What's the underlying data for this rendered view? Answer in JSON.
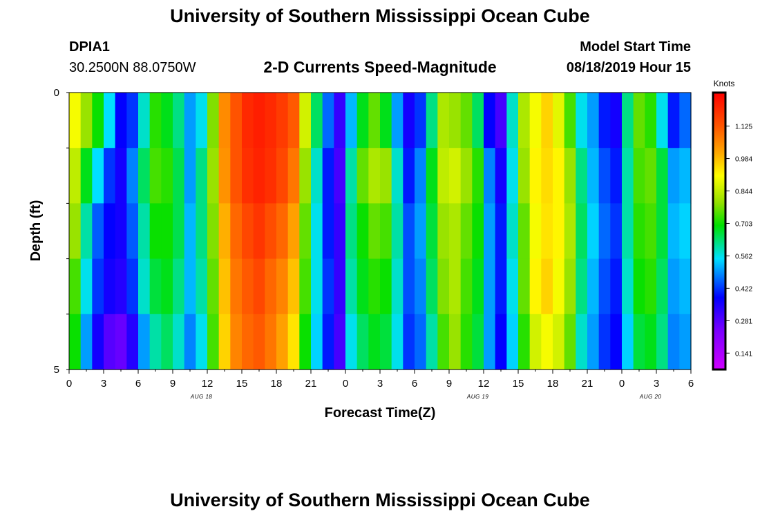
{
  "header": {
    "title": "University of Southern Mississippi Ocean Cube",
    "station_id": "DPIA1",
    "station_coords": "30.2500N 88.0750W",
    "subtitle": "2-D Currents Speed-Magnitude",
    "model_label": "Model Start Time",
    "model_time": "08/18/2019 Hour 15"
  },
  "footer": {
    "title": "University of Southern Mississippi Ocean Cube"
  },
  "chart_data": {
    "type": "heatmap",
    "title": "2-D Currents Speed-Magnitude",
    "xlabel": "Forecast Time(Z)",
    "ylabel": "Depth (ft)",
    "x_ticks": [
      "0",
      "3",
      "6",
      "9",
      "12",
      "15",
      "18",
      "21",
      "0",
      "3",
      "6",
      "9",
      "12",
      "15",
      "18",
      "21",
      "0",
      "3",
      "6"
    ],
    "date_labels": [
      {
        "label": "AUG 18",
        "hour_index": 11.5
      },
      {
        "label": "AUG 19",
        "hour_index": 35.5
      },
      {
        "label": "AUG 20",
        "hour_index": 50.5
      }
    ],
    "y_ticks": [
      "0",
      "5"
    ],
    "ylim": [
      0,
      5
    ],
    "colorbar": {
      "unit": "Knots",
      "ticks": [
        "0.141",
        "0.281",
        "0.422",
        "0.562",
        "0.703",
        "0.844",
        "0.984",
        "1.125"
      ],
      "range": [
        0.07,
        1.27
      ]
    },
    "n_hours": 54,
    "n_depth_bands": 5,
    "speeds_knots": [
      [
        0.9,
        0.8,
        0.7,
        0.55,
        0.38,
        0.42,
        0.58,
        0.72,
        0.68,
        0.62,
        0.5,
        0.56,
        0.78,
        1.05,
        1.13,
        1.2,
        1.22,
        1.2,
        1.17,
        1.12,
        0.86,
        0.64,
        0.46,
        0.32,
        0.52,
        0.68,
        0.76,
        0.68,
        0.5,
        0.36,
        0.42,
        0.62,
        0.82,
        0.8,
        0.76,
        0.64,
        0.38,
        0.3,
        0.58,
        0.82,
        0.9,
        0.96,
        0.88,
        0.74,
        0.56,
        0.5,
        0.4,
        0.36,
        0.62,
        0.76,
        0.72,
        0.56,
        0.4,
        0.46
      ],
      [
        0.84,
        0.68,
        0.55,
        0.42,
        0.36,
        0.48,
        0.64,
        0.74,
        0.72,
        0.65,
        0.5,
        0.62,
        0.8,
        1.04,
        1.13,
        1.19,
        1.21,
        1.19,
        1.15,
        1.08,
        0.8,
        0.58,
        0.4,
        0.3,
        0.6,
        0.76,
        0.82,
        0.8,
        0.58,
        0.4,
        0.48,
        0.68,
        0.84,
        0.86,
        0.8,
        0.72,
        0.48,
        0.36,
        0.56,
        0.8,
        0.92,
        0.95,
        0.92,
        0.8,
        0.62,
        0.52,
        0.44,
        0.4,
        0.6,
        0.74,
        0.76,
        0.66,
        0.5,
        0.52
      ],
      [
        0.8,
        0.6,
        0.45,
        0.38,
        0.36,
        0.45,
        0.6,
        0.7,
        0.7,
        0.65,
        0.52,
        0.62,
        0.78,
        1.0,
        1.1,
        1.15,
        1.18,
        1.14,
        1.1,
        1.02,
        0.76,
        0.56,
        0.4,
        0.32,
        0.62,
        0.7,
        0.76,
        0.74,
        0.6,
        0.44,
        0.5,
        0.66,
        0.8,
        0.82,
        0.76,
        0.7,
        0.5,
        0.4,
        0.58,
        0.76,
        0.9,
        0.94,
        0.92,
        0.82,
        0.64,
        0.54,
        0.46,
        0.42,
        0.6,
        0.72,
        0.74,
        0.66,
        0.52,
        0.54
      ],
      [
        0.74,
        0.56,
        0.42,
        0.36,
        0.34,
        0.42,
        0.58,
        0.66,
        0.68,
        0.62,
        0.52,
        0.6,
        0.76,
        0.98,
        1.08,
        1.12,
        1.15,
        1.1,
        1.06,
        0.98,
        0.74,
        0.56,
        0.42,
        0.32,
        0.6,
        0.68,
        0.72,
        0.7,
        0.58,
        0.44,
        0.48,
        0.64,
        0.78,
        0.82,
        0.74,
        0.68,
        0.5,
        0.4,
        0.56,
        0.76,
        0.92,
        0.96,
        0.9,
        0.8,
        0.62,
        0.52,
        0.44,
        0.4,
        0.58,
        0.7,
        0.72,
        0.64,
        0.5,
        0.52
      ],
      [
        0.7,
        0.5,
        0.36,
        0.28,
        0.26,
        0.34,
        0.5,
        0.6,
        0.64,
        0.58,
        0.48,
        0.56,
        0.74,
        0.96,
        1.06,
        1.1,
        1.12,
        1.08,
        1.02,
        0.94,
        0.7,
        0.54,
        0.4,
        0.3,
        0.56,
        0.64,
        0.68,
        0.66,
        0.56,
        0.42,
        0.46,
        0.6,
        0.74,
        0.8,
        0.72,
        0.66,
        0.5,
        0.38,
        0.54,
        0.72,
        0.86,
        0.9,
        0.86,
        0.76,
        0.58,
        0.5,
        0.42,
        0.38,
        0.54,
        0.66,
        0.68,
        0.62,
        0.48,
        0.5
      ]
    ]
  }
}
